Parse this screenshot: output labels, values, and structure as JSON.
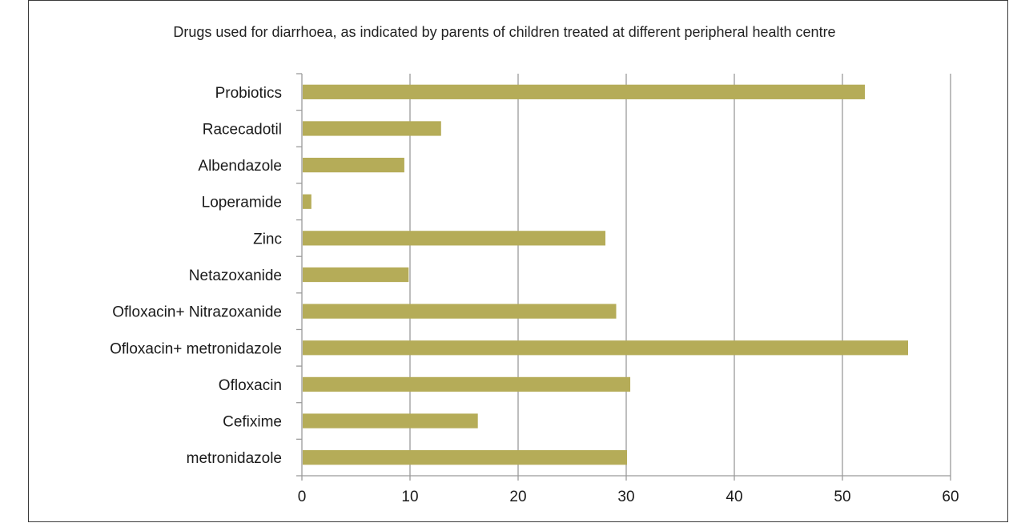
{
  "chart_data": {
    "type": "bar",
    "orientation": "horizontal",
    "title": "Drugs used for diarrhoea, as indicated by parents of children treated at different peripheral health centre",
    "categories": [
      "Probiotics",
      "Racecadotil",
      "Albendazole",
      "Loperamide",
      "Zinc",
      "Netazoxanide",
      "Ofloxacin+ Nitrazoxanide",
      "Ofloxacin+ metronidazole",
      "Ofloxacin",
      "Cefixime",
      "metronidazole"
    ],
    "values": [
      52,
      12.8,
      9.4,
      0.8,
      28,
      9.8,
      29,
      56,
      30.3,
      16.2,
      30
    ],
    "xlim": [
      0,
      60
    ],
    "xticks": [
      "0",
      "10",
      "20",
      "30",
      "40",
      "50",
      "60"
    ],
    "grid": true,
    "bar_color": "#b5ac58",
    "grid_color": "#9a9a9a"
  }
}
